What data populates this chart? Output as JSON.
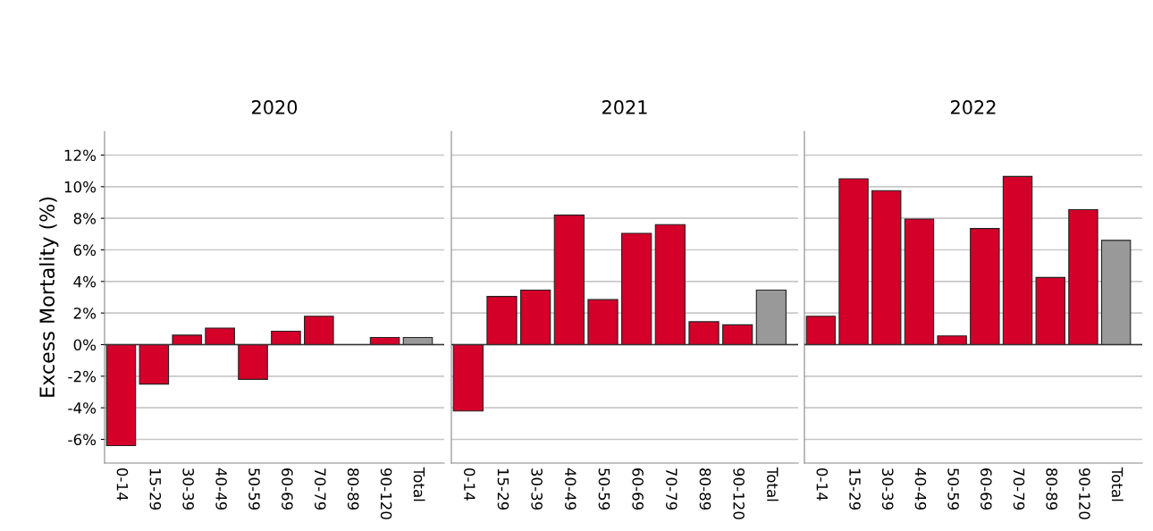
{
  "chart_data": [
    {
      "type": "bar",
      "title": "2020",
      "ylabel": "Excess Mortality (%)",
      "categories": [
        "0-14",
        "15-29",
        "30-39",
        "40-49",
        "50-59",
        "60-69",
        "70-79",
        "80-89",
        "90-120",
        "Total"
      ],
      "values": [
        -6.4,
        -2.5,
        0.6,
        1.05,
        -2.2,
        0.85,
        1.8,
        null,
        0.45,
        0.45
      ],
      "colors": [
        "#d4002a",
        "#d4002a",
        "#d4002a",
        "#d4002a",
        "#d4002a",
        "#d4002a",
        "#d4002a",
        "#d4002a",
        "#d4002a",
        "#999999"
      ],
      "ylim": [
        -7.5,
        13.5
      ],
      "yticks": [
        {
          "value": -6,
          "label": "-6%"
        },
        {
          "value": -4,
          "label": "-4%"
        },
        {
          "value": -2,
          "label": "-2%"
        },
        {
          "value": 0,
          "label": "0%"
        },
        {
          "value": 2,
          "label": "2%"
        },
        {
          "value": 4,
          "label": "4%"
        },
        {
          "value": 6,
          "label": "6%"
        },
        {
          "value": 8,
          "label": "8%"
        },
        {
          "value": 10,
          "label": "10%"
        },
        {
          "value": 12,
          "label": "12%"
        }
      ],
      "grid": "y"
    },
    {
      "type": "bar",
      "title": "2021",
      "categories": [
        "0-14",
        "15-29",
        "30-39",
        "40-49",
        "50-59",
        "60-69",
        "70-79",
        "80-89",
        "90-120",
        "Total"
      ],
      "values": [
        -4.2,
        3.05,
        3.45,
        8.2,
        2.85,
        7.05,
        7.6,
        1.45,
        1.25,
        3.45
      ],
      "colors": [
        "#d4002a",
        "#d4002a",
        "#d4002a",
        "#d4002a",
        "#d4002a",
        "#d4002a",
        "#d4002a",
        "#d4002a",
        "#d4002a",
        "#999999"
      ],
      "ylim": [
        -7.5,
        13.5
      ],
      "yticks": [
        {
          "value": -6,
          "label": null
        },
        {
          "value": -4,
          "label": null
        },
        {
          "value": -2,
          "label": null
        },
        {
          "value": 0,
          "label": null
        },
        {
          "value": 2,
          "label": null
        },
        {
          "value": 4,
          "label": null
        },
        {
          "value": 6,
          "label": null
        },
        {
          "value": 8,
          "label": null
        },
        {
          "value": 10,
          "label": null
        },
        {
          "value": 12,
          "label": null
        }
      ],
      "grid": "y",
      "tick_labels": "x"
    },
    {
      "type": "bar",
      "title": "2022",
      "categories": [
        "0-14",
        "15-29",
        "30-39",
        "40-49",
        "50-59",
        "60-69",
        "70-79",
        "80-89",
        "90-120",
        "Total"
      ],
      "values": [
        1.8,
        10.5,
        9.75,
        7.95,
        0.55,
        7.35,
        10.65,
        4.25,
        8.55,
        6.6
      ],
      "colors": [
        "#d4002a",
        "#d4002a",
        "#d4002a",
        "#d4002a",
        "#d4002a",
        "#d4002a",
        "#d4002a",
        "#d4002a",
        "#d4002a",
        "#999999"
      ],
      "ylim": [
        -7.5,
        13.5
      ],
      "yticks": [
        {
          "value": -6,
          "label": null
        },
        {
          "value": -4,
          "label": null
        },
        {
          "value": -2,
          "label": null
        },
        {
          "value": 0,
          "label": null
        },
        {
          "value": 2,
          "label": null
        },
        {
          "value": 4,
          "label": null
        },
        {
          "value": 6,
          "label": null
        },
        {
          "value": 8,
          "label": null
        },
        {
          "value": 10,
          "label": null
        },
        {
          "value": 12,
          "label": null
        }
      ],
      "grid": "y",
      "tick_labels": "x"
    }
  ]
}
